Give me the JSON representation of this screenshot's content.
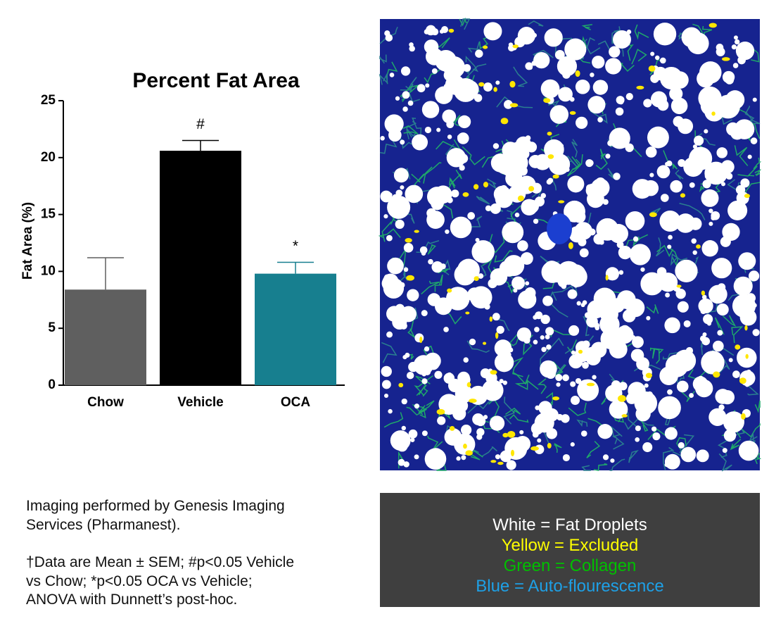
{
  "chart_data": {
    "type": "bar",
    "title": "Percent Fat Area",
    "y_label": "Fat Area (%)",
    "categories": [
      "Chow",
      "Vehicle",
      "OCA"
    ],
    "values": [
      8.4,
      20.6,
      9.8
    ],
    "errors": [
      2.8,
      0.9,
      1.0
    ],
    "colors": [
      "#5f5f5f",
      "#000000",
      "#177f8f"
    ],
    "ylim": [
      0,
      25
    ],
    "yticks": [
      0,
      5,
      10,
      15,
      20,
      25
    ],
    "annotations": [
      {
        "text": "#",
        "category": "Vehicle"
      },
      {
        "text": "*",
        "category": "OCA"
      }
    ]
  },
  "credit": [
    "Imaging performed by Genesis Imaging",
    "Services (Pharmanest)."
  ],
  "footnote": [
    "†Data are Mean ± SEM; #p<0.05 Vehicle",
    "vs Chow; *p<0.05 OCA vs Vehicle;",
    "ANOVA with Dunnett’s post-hoc."
  ],
  "legend": [
    {
      "text": "White = Fat Droplets",
      "color": "#ffffff"
    },
    {
      "text": "Yellow = Excluded",
      "color": "#ffff00"
    },
    {
      "text": "Green = Collagen",
      "color": "#00c000"
    },
    {
      "text": "Blue = Auto-flourescence",
      "color": "#1ea0e6"
    }
  ]
}
